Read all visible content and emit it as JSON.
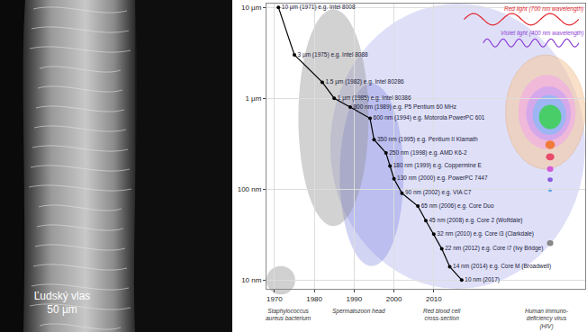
{
  "chart_data": {
    "type": "line",
    "x": [
      1971,
      1975,
      1982,
      1985,
      1989,
      1994,
      1995,
      1998,
      1999,
      2000,
      2002,
      2006,
      2008,
      2010,
      2012,
      2014,
      2017
    ],
    "values": [
      10000,
      3000,
      1500,
      1000,
      800,
      600,
      350,
      250,
      180,
      130,
      90,
      65,
      45,
      32,
      22,
      14,
      10
    ],
    "value_labels": [
      "10 µm (1971) e.g. Intel 8008",
      "3 µm (1975) e.g. Intel 8088",
      "1.5 µm (1982) e.g. Intel 80286",
      "1 µm (1985) e.g. Intel 80386",
      "800 nm (1989) e.g. P5 Pentium 60 MHz",
      "600 nm (1994) e.g. Motorola PowerPC 601",
      "350 nm (1995) e.g. Pentium II Klamath",
      "250 nm (1998) e.g. AMD K6-2",
      "180 nm (1999) e.g. Coppermine E",
      "130 nm (2000) e.g. PowerPC 7447",
      "90 nm (2002) e.g. VIA C7",
      "65 nm (2006) e.g. Core Duo",
      "45 nm (2008) e.g. Core 2 (Wolfdale)",
      "32 nm (2010) e.g. Core i3 (Clarkdale)",
      "22 nm (2012) e.g. Core i7 (Ivy Bridge)",
      "14 nm (2014) e.g. Core M (Broadwell)",
      "10 nm (2017)"
    ],
    "data_labels": true,
    "color": "#000000",
    "marker": "circle",
    "log": "y",
    "grid": true,
    "xlim": [
      1968,
      2048
    ],
    "xticks": [
      1970,
      1980,
      1990,
      2000,
      2010
    ],
    "ylim": [
      8,
      11000
    ],
    "yticks": [
      {
        "value": 10,
        "label": "10 nm"
      },
      {
        "value": 100,
        "label": "100 nm"
      },
      {
        "value": 1000,
        "label": "1 µm"
      },
      {
        "value": 10000,
        "label": "10 µm"
      }
    ],
    "annotations": [
      {
        "text": "Red light (700 nm wavelength)",
        "color": "#e3262d"
      },
      {
        "text": "Violet light (400 nm wavelength)",
        "color": "#8f3fd6"
      },
      {
        "text": "Staphylococcus aureus bacterium",
        "color": "#333333"
      },
      {
        "text": "Spermatozoon head",
        "color": "#333333"
      },
      {
        "text": "Red blood cell cross-section",
        "color": "#333333"
      },
      {
        "text": "Human immuno-deficiency virus (HIV)",
        "color": "#333333"
      }
    ]
  },
  "photo": {
    "caption": [
      "Ľudský vlas",
      "50 µm"
    ]
  }
}
